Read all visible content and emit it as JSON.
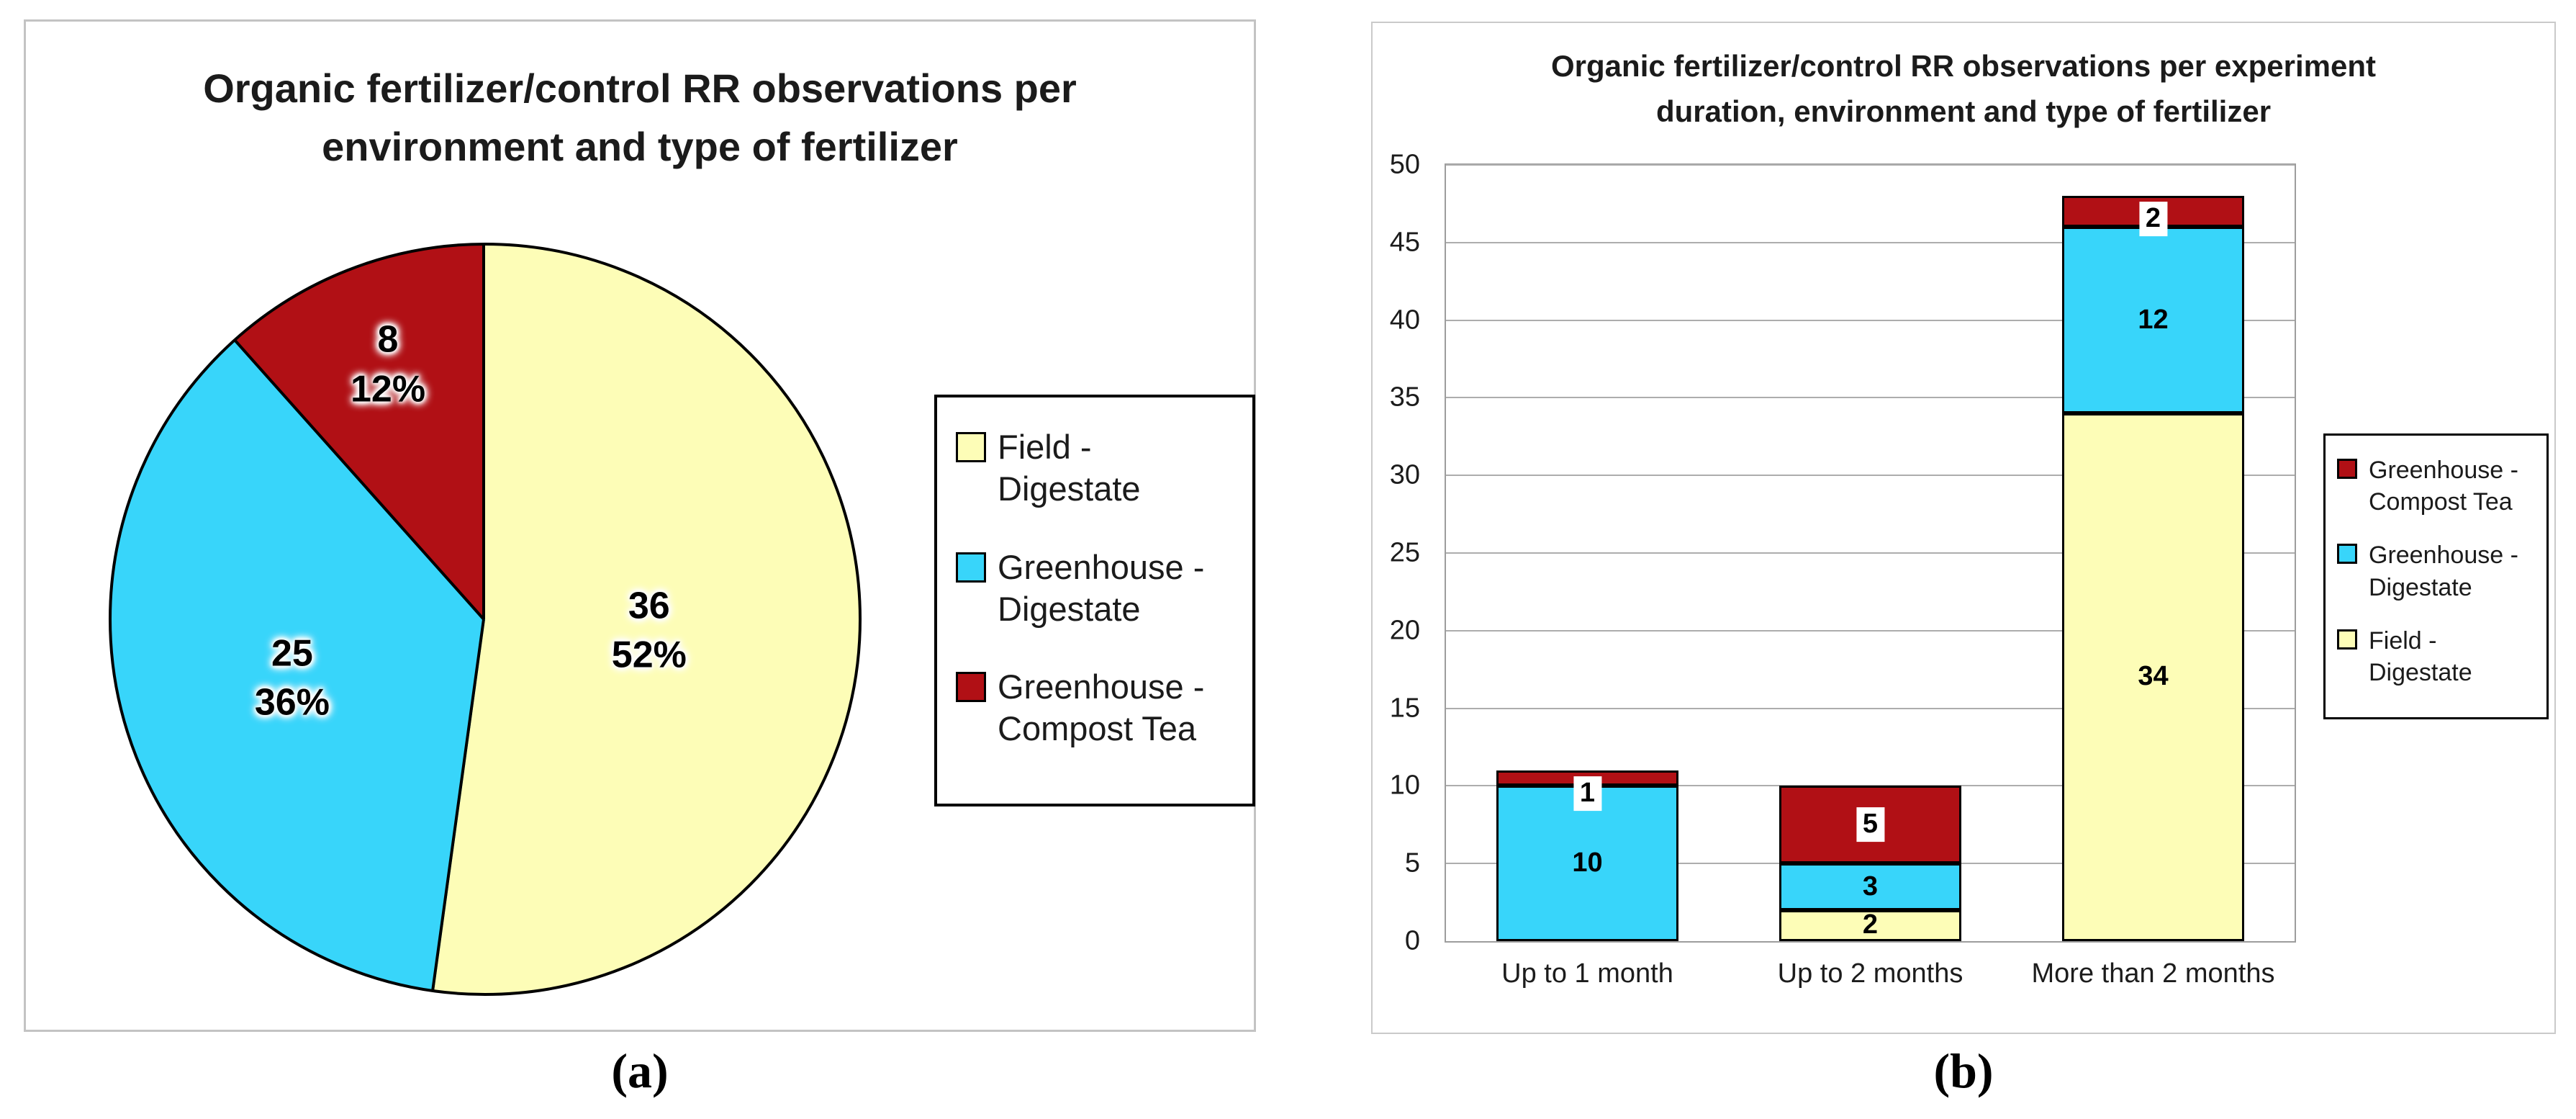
{
  "figure": {
    "panels": [
      {
        "id": "a",
        "caption": "(a)",
        "title_lines": [
          "Organic fertilizer/control RR observations per",
          "environment and type of fertilizer"
        ]
      },
      {
        "id": "b",
        "caption": "(b)",
        "title_lines": [
          "Organic fertilizer/control RR observations per experiment",
          "duration, environment and type of fertilizer"
        ]
      }
    ]
  },
  "colors": {
    "field_digestate": "#FDFDB7",
    "greenhouse_digestate": "#38D5FA",
    "greenhouse_compost_tea": "#B11015",
    "gridline": "#adadad",
    "plot_border": "#9d9d9d",
    "panel_border": "#c3c3c3",
    "outline": "#000000"
  },
  "chart_data": [
    {
      "type": "pie",
      "title": "Organic fertilizer/control RR observations per environment and type of fertilizer",
      "start_angle_deg": 0,
      "direction": "clockwise",
      "legend_position": "right",
      "slices": [
        {
          "label": "Field - Digestate",
          "value": 36,
          "value_label": "36",
          "pct_label": "52%",
          "color": "#FDFDB7"
        },
        {
          "label": "Greenhouse - Digestate",
          "value": 25,
          "value_label": "25",
          "pct_label": "36%",
          "color": "#38D5FA"
        },
        {
          "label": "Greenhouse - Compost Tea",
          "value": 8,
          "value_label": "8",
          "pct_label": "12%",
          "color": "#B11015"
        }
      ]
    },
    {
      "type": "bar",
      "stacked": true,
      "title": "Organic fertilizer/control RR observations per experiment duration, environment and type of fertilizer",
      "categories": [
        "Up to 1 month",
        "Up to 2 months",
        "More than 2 months"
      ],
      "series": [
        {
          "name": "Field - Digestate",
          "color": "#FDFDB7",
          "boxed_labels": false,
          "values": [
            0,
            2,
            34
          ]
        },
        {
          "name": "Greenhouse - Digestate",
          "color": "#38D5FA",
          "boxed_labels": false,
          "values": [
            10,
            3,
            12
          ]
        },
        {
          "name": "Greenhouse - Compost Tea",
          "color": "#B11015",
          "boxed_labels": true,
          "values": [
            1,
            5,
            2
          ]
        }
      ],
      "ylim": [
        0,
        50
      ],
      "ytick_step": 5,
      "ytick_labels": [
        "0",
        "5",
        "10",
        "15",
        "20",
        "25",
        "30",
        "35",
        "40",
        "45",
        "50"
      ],
      "grid": true,
      "legend_position": "right",
      "legend_order": [
        "Greenhouse - Compost Tea",
        "Greenhouse - Digestate",
        "Field - Digestate"
      ]
    }
  ]
}
